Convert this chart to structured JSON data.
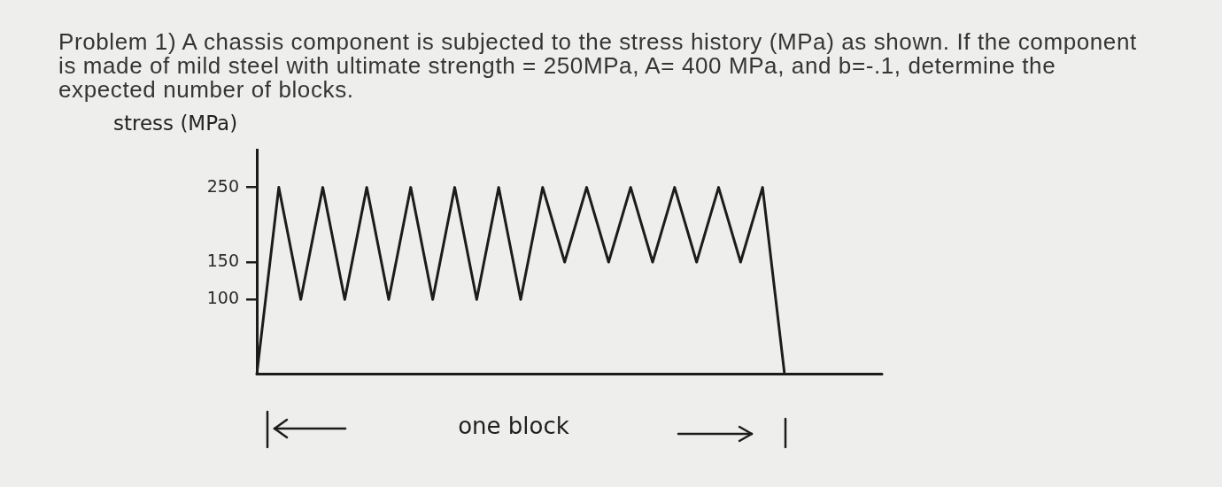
{
  "chart_data": {
    "type": "line",
    "title": "Problem 1) A chassis component is subjected to the stress history (MPa) as shown. If the component is made of mild steel with ultimate strength = 250MPa, A= 400 MPa, and b=-.1, determine the expected number of blocks.",
    "ylabel": "stress (MPa)",
    "annotations": [
      "one block"
    ],
    "categories": [
      null,
      null,
      null,
      null,
      null,
      null,
      null,
      null,
      null,
      null,
      null,
      null,
      null,
      null,
      null,
      null,
      null,
      null,
      null,
      null,
      null,
      null,
      null,
      null,
      null
    ],
    "series": [
      {
        "color": "#1c1c1c",
        "values": [
          0,
          250,
          100,
          250,
          100,
          250,
          100,
          250,
          100,
          250,
          100,
          250,
          100,
          250,
          150,
          250,
          150,
          250,
          150,
          250,
          150,
          250,
          150,
          250,
          0
        ]
      }
    ],
    "ylim": [
      0,
      300
    ],
    "yticks": [
      100,
      150,
      250
    ],
    "marker": "none",
    "line_style": "solid",
    "legend": false,
    "grid": false
  }
}
